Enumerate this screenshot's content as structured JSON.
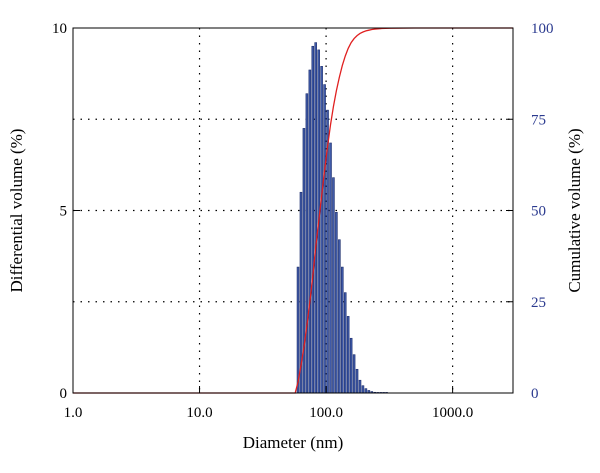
{
  "chart_data": {
    "type": "bar",
    "title": "",
    "xlabel": "Diameter (nm)",
    "ylabel": "Differential volume (%)",
    "y2label": "Cumulative volume (%)",
    "xscale": "log",
    "xlim": [
      1.0,
      3000
    ],
    "ylim": [
      0,
      10
    ],
    "y2lim": [
      0,
      100
    ],
    "x_ticks": [
      "1.0",
      "10.0",
      "100.0",
      "1000.0"
    ],
    "y_ticks": [
      "0",
      "5",
      "10"
    ],
    "y2_ticks": [
      "0",
      "25",
      "50",
      "75",
      "100"
    ],
    "grid": true,
    "bar_color": "#3f5aa8",
    "line_color": "#e02020",
    "right_axis_color": "#2b3a8f",
    "series": [
      {
        "kind": "bar",
        "x": [
          60,
          63.3,
          66.8,
          70.5,
          74.4,
          78.5,
          82.8,
          87.4,
          92.2,
          97.3,
          102.7,
          108.4,
          114.3,
          120.6,
          127.3,
          134.3,
          141.7,
          149.5,
          157.8,
          166.5,
          175.7,
          185.4,
          195.6,
          206.4,
          217.8,
          229.8,
          242.5,
          255.8,
          270,
          284.9,
          300.6
        ],
        "values": [
          3.45,
          5.5,
          7.25,
          8.2,
          8.85,
          9.5,
          9.6,
          9.4,
          8.95,
          8.45,
          7.75,
          6.85,
          5.9,
          4.95,
          4.2,
          3.45,
          2.75,
          2.1,
          1.5,
          1.05,
          0.65,
          0.35,
          0.2,
          0.12,
          0.07,
          0.04,
          0.02,
          0.01,
          0.01,
          0.005,
          0.005
        ]
      },
      {
        "kind": "line",
        "axis": "right",
        "x": [
          1,
          20,
          50,
          57,
          60,
          63.3,
          66.8,
          70.5,
          74.4,
          78.5,
          82.8,
          87.4,
          92.2,
          97.3,
          102.7,
          108.4,
          114.3,
          120.6,
          127.3,
          134.3,
          141.7,
          149.5,
          157.8,
          166.5,
          175.7,
          185.4,
          195.6,
          206.4,
          217.8,
          229.8,
          242.5,
          270,
          320,
          500,
          3000
        ],
        "values": [
          0,
          0,
          0,
          0,
          3,
          7.5,
          12.5,
          18.5,
          25,
          32,
          40,
          47,
          54,
          61,
          67.5,
          73.5,
          78.5,
          82.8,
          86.5,
          89.7,
          92.3,
          94.4,
          96,
          97.1,
          97.9,
          98.5,
          98.9,
          99.2,
          99.4,
          99.6,
          99.7,
          99.85,
          99.95,
          100,
          100
        ]
      }
    ]
  }
}
